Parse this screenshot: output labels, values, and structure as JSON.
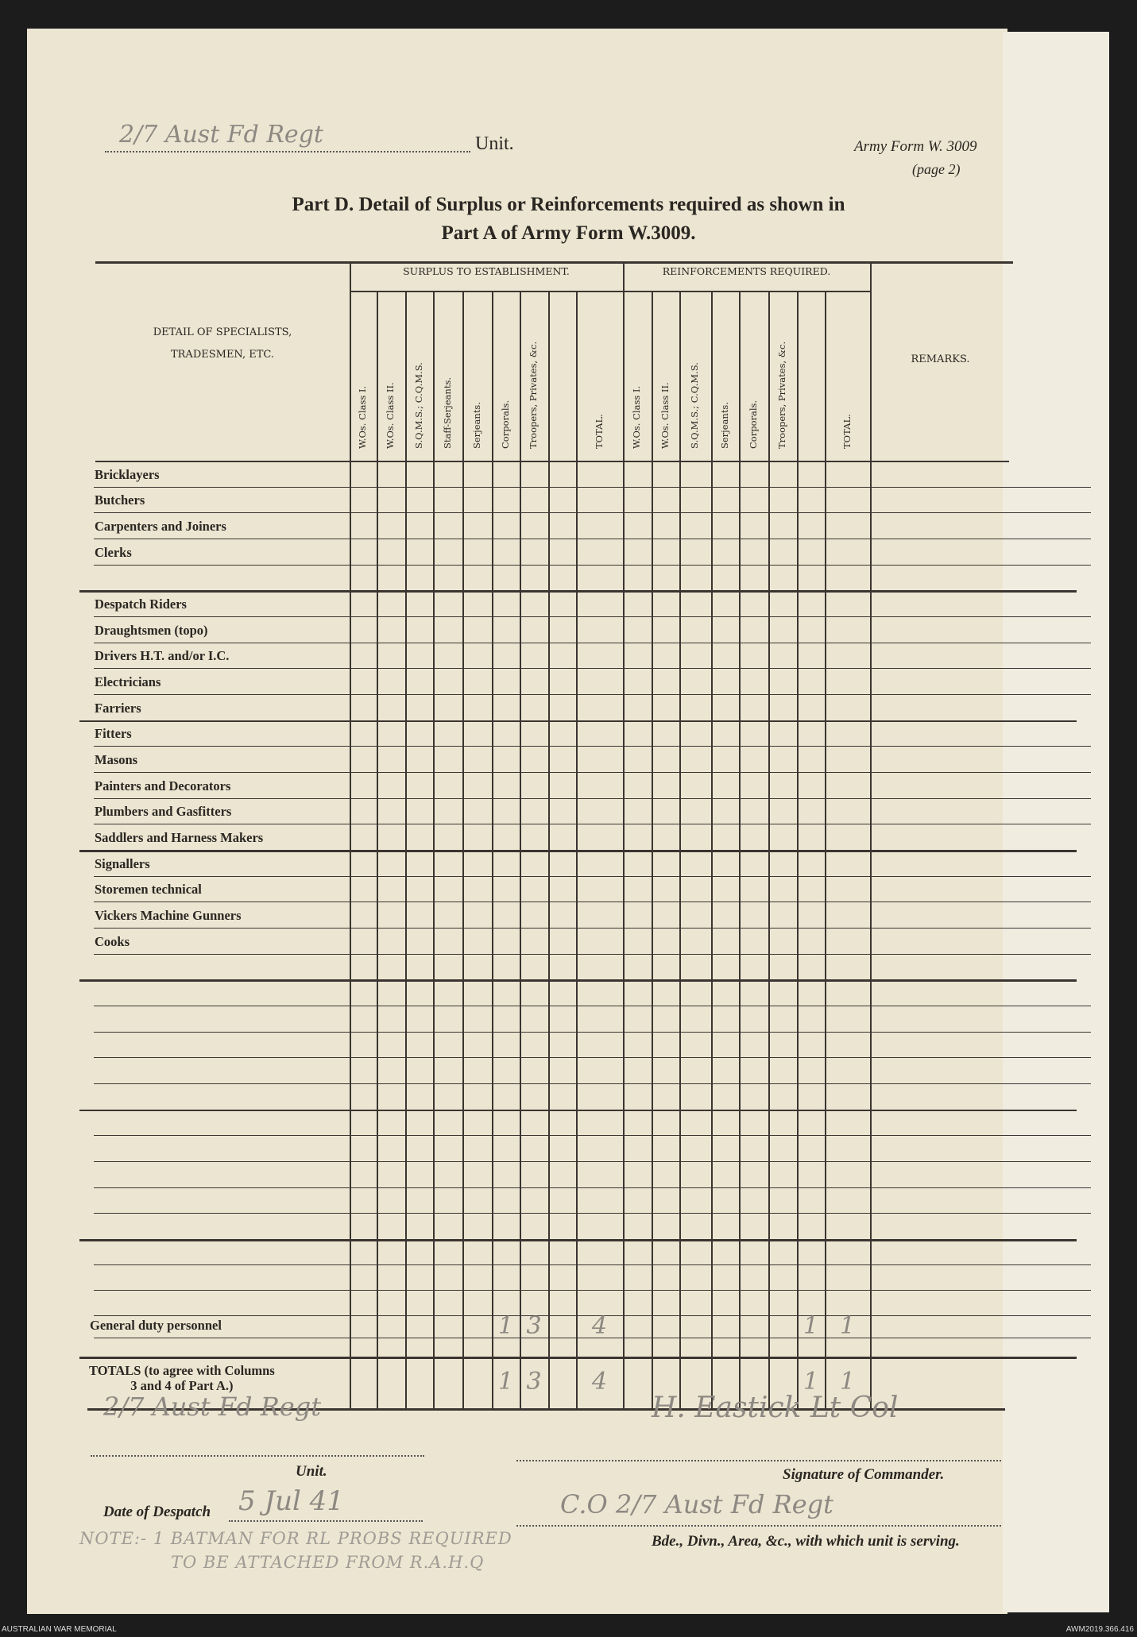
{
  "header": {
    "unit_handwritten": "2/7 Aust Fd Regt",
    "unit_label": "Unit.",
    "form_id": "Army Form W. 3009",
    "form_page": "(page 2)",
    "title_line1": "Part D.  Detail of Surplus or Reinforcements required as shown in",
    "title_line2": "Part A of Army Form W.3009."
  },
  "table": {
    "detail_header": "DETAIL OF SPECIALISTS,\nTRADESMEN, ETC.",
    "surplus_header": "SURPLUS TO ESTABLISHMENT.",
    "reinforcements_header": "REINFORCEMENTS REQUIRED.",
    "remarks_header": "REMARKS.",
    "surplus_columns": [
      "W.Os. Class I.",
      "W.Os. Class II.",
      "S.Q.M.S.; C.Q.M.S.",
      "Staff-Serjeants.",
      "Serjeants.",
      "Corporals.",
      "Troopers, Privates, &c.",
      "",
      "TOTAL."
    ],
    "reinforcement_columns": [
      "W.Os. Class I.",
      "W.Os. Class II.",
      "S.Q.M.S.; C.Q.M.S.",
      "Serjeants.",
      "Corporals.",
      "Troopers, Privates, &c.",
      "",
      "TOTAL."
    ],
    "rows": [
      {
        "label": "Bricklayers"
      },
      {
        "label": "Butchers"
      },
      {
        "label": "Carpenters and Joiners"
      },
      {
        "label": "Clerks"
      },
      {
        "label": ""
      },
      {
        "label": "Despatch Riders"
      },
      {
        "label": "Draughtsmen (topo)"
      },
      {
        "label": "Drivers H.T. and/or I.C."
      },
      {
        "label": "Electricians"
      },
      {
        "label": "Farriers"
      },
      {
        "label": "Fitters"
      },
      {
        "label": "Masons"
      },
      {
        "label": "Painters and Decorators"
      },
      {
        "label": "Plumbers and Gasfitters"
      },
      {
        "label": "Saddlers and Harness Makers"
      },
      {
        "label": "Signallers"
      },
      {
        "label": "Storemen technical"
      },
      {
        "label": "Vickers Machine Gunners"
      },
      {
        "label": "Cooks"
      },
      {
        "label": ""
      },
      {
        "label": ""
      },
      {
        "label": ""
      },
      {
        "label": ""
      },
      {
        "label": ""
      },
      {
        "label": ""
      },
      {
        "label": ""
      },
      {
        "label": ""
      },
      {
        "label": ""
      },
      {
        "label": ""
      },
      {
        "label": ""
      },
      {
        "label": ""
      },
      {
        "label": ""
      },
      {
        "label": ""
      },
      {
        "label": "General duty personnel",
        "surplus": {
          "5": "1",
          "6": "3",
          "8": "4"
        },
        "reinforcements": {
          "6": "1",
          "7": "1"
        }
      },
      {
        "label": ""
      }
    ],
    "totals": {
      "label": "TOTALS (to agree with Columns\n3 and 4 of Part A.)",
      "surplus": {
        "5": "1",
        "6": "3",
        "8": "4"
      },
      "reinforcements": {
        "6": "1",
        "7": "1"
      }
    }
  },
  "footer_form": {
    "unit_handwritten": "2/7 Aust Fd Regt",
    "unit_label": "Unit.",
    "signature_handwritten": "H. Eastick Lt Col",
    "signature_label": "Signature of Commander.",
    "date_label": "Date of Despatch",
    "date_handwritten": "5 Jul 41",
    "formation_handwritten": "C.O 2/7 Aust Fd Regt",
    "formation_label": "Bde., Divn., Area, &c., with which unit is serving.",
    "note_line1": "NOTE:- 1 BATMAN FOR RL PROBS REQUIRED",
    "note_line2": "TO BE ATTACHED FROM R.A.H.Q"
  },
  "archive": {
    "left": "AUSTRALIAN WAR MEMORIAL",
    "right": "AWM2019.366.416"
  }
}
